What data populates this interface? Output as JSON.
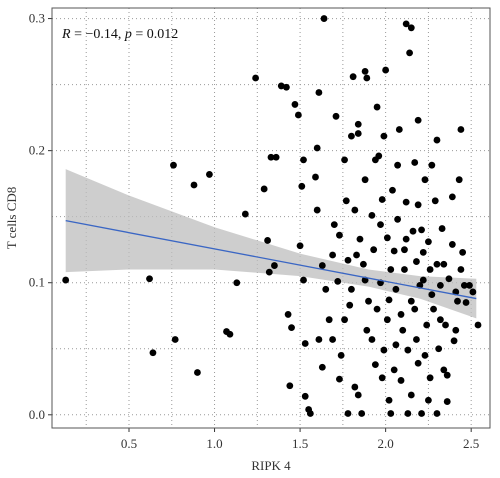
{
  "chart_data": {
    "type": "scatter",
    "annotation": [
      "R",
      " = −0.14, ",
      "p",
      " = 0.012"
    ],
    "x_label": "RIPK 4",
    "y_label": "T cells CD8",
    "xlim": [
      0.05,
      2.61
    ],
    "ylim": [
      -0.01,
      0.308
    ],
    "xticks": [
      0.5,
      {
        "value": 1,
        "label": "1.0"
      },
      1.5,
      {
        "value": 2,
        "label": "2.0"
      },
      2.5
    ],
    "yticks": [
      {
        "value": 0,
        "label": "0.0"
      },
      0.1,
      0.2,
      0.3
    ],
    "grid": true,
    "minor_grid": true,
    "color": "#000000",
    "x": [
      0.13,
      0.62,
      0.64,
      0.77,
      0.76,
      0.88,
      0.97,
      0.9,
      1.07,
      1.09,
      1.13,
      1.18,
      1.24,
      1.29,
      1.31,
      1.32,
      1.33,
      1.36,
      1.35,
      1.39,
      1.42,
      1.43,
      1.45,
      1.44,
      1.47,
      1.49,
      1.52,
      1.51,
      1.5,
      1.52,
      1.53,
      1.53,
      1.55,
      1.56,
      1.61,
      1.64,
      1.63,
      1.63,
      1.6,
      1.59,
      1.6,
      1.67,
      1.69,
      1.71,
      1.73,
      1.72,
      1.74,
      1.76,
      1.77,
      1.78,
      1.79,
      1.8,
      1.81,
      1.83,
      1.82,
      1.84,
      1.84,
      1.86,
      1.87,
      1.88,
      1.88,
      1.89,
      1.9,
      1.92,
      1.92,
      1.94,
      1.95,
      1.96,
      1.97,
      1.98,
      1.98,
      1.99,
      2.0,
      2.01,
      2.02,
      2.02,
      2.03,
      2.04,
      2.05,
      2.06,
      2.07,
      2.08,
      2.09,
      2.09,
      2.11,
      2.11,
      2.12,
      2.12,
      2.13,
      2.14,
      2.15,
      2.15,
      2.16,
      2.17,
      2.18,
      2.18,
      2.19,
      2.19,
      2.2,
      2.21,
      2.22,
      2.23,
      2.24,
      2.25,
      2.26,
      2.26,
      2.27,
      2.28,
      2.29,
      2.3,
      2.31,
      2.32,
      2.33,
      2.34,
      2.35,
      2.36,
      2.37,
      2.39,
      2.4,
      2.41,
      2.42,
      2.43,
      2.44,
      2.45,
      2.46,
      2.47,
      2.49,
      2.51,
      2.54,
      1.61,
      1.65,
      1.7,
      1.76,
      1.8,
      1.85,
      1.89,
      1.93,
      1.95,
      1.99,
      2.03,
      2.06,
      2.1,
      2.13,
      2.17,
      2.21,
      2.23,
      2.27,
      2.3,
      2.32,
      2.36,
      2.39,
      2.41,
      2.44,
      1.73,
      1.84,
      1.94,
      2.05,
      2.15,
      2.25,
      2.34,
      1.69,
      1.82,
      1.97,
      2.07,
      2.19,
      2.3,
      1.78,
      1.88,
      2.01,
      2.12,
      2.22
    ],
    "y": [
      0.102,
      0.103,
      0.047,
      0.057,
      0.189,
      0.174,
      0.182,
      0.032,
      0.063,
      0.061,
      0.1,
      0.152,
      0.255,
      0.171,
      0.132,
      0.108,
      0.195,
      0.195,
      0.113,
      0.249,
      0.248,
      0.076,
      0.066,
      0.022,
      0.235,
      0.227,
      0.193,
      0.173,
      0.128,
      0.102,
      0.054,
      0.014,
      0.004,
      0.001,
      0.244,
      0.3,
      0.113,
      0.036,
      0.202,
      0.18,
      0.155,
      0.072,
      0.057,
      0.226,
      0.136,
      0.101,
      0.045,
      0.193,
      0.162,
      0.001,
      0.083,
      0.211,
      0.256,
      0.121,
      0.021,
      0.213,
      0.22,
      0.001,
      0.114,
      0.178,
      0.26,
      0.255,
      0.086,
      0.151,
      0.057,
      0.193,
      0.233,
      0.196,
      0.1,
      0.163,
      0.028,
      0.211,
      0.261,
      0.134,
      0.087,
      0.011,
      0.001,
      0.17,
      0.124,
      0.053,
      0.148,
      0.216,
      0.076,
      0.026,
      0.11,
      0.125,
      0.161,
      0.296,
      0.001,
      0.274,
      0.293,
      0.086,
      0.139,
      0.191,
      0.057,
      0.116,
      0.223,
      0.039,
      0.098,
      0.001,
      0.123,
      0.178,
      0.068,
      0.131,
      0.11,
      0.028,
      0.189,
      0.08,
      0.162,
      0.001,
      0.05,
      0.098,
      0.141,
      0.114,
      0.068,
      0.01,
      0.103,
      0.165,
      0.056,
      0.093,
      0.086,
      0.178,
      0.216,
      0.123,
      0.098,
      0.085,
      0.098,
      0.093,
      0.068,
      0.057,
      0.095,
      0.144,
      0.072,
      0.095,
      0.133,
      0.064,
      0.125,
      0.08,
      0.049,
      0.11,
      0.095,
      0.064,
      0.049,
      0.08,
      0.14,
      0.045,
      0.091,
      0.114,
      0.072,
      0.03,
      0.129,
      0.064,
      0.11,
      0.027,
      0.015,
      0.038,
      0.034,
      0.015,
      0.011,
      0.034,
      0.121,
      0.155,
      0.144,
      0.189,
      0.159,
      0.208,
      0.117,
      0.102,
      0.072,
      0.133,
      0.102
    ],
    "fit": {
      "x": [
        0.13,
        2.53
      ],
      "y": [
        0.147,
        0.088
      ],
      "color": "#3a66c4"
    },
    "band": {
      "x": [
        0.13,
        0.5,
        1.0,
        1.5,
        1.9,
        2.2,
        2.53
      ],
      "upper": [
        0.186,
        0.166,
        0.142,
        0.122,
        0.11,
        0.105,
        0.103
      ],
      "lower": [
        0.108,
        0.11,
        0.11,
        0.105,
        0.097,
        0.088,
        0.073
      ],
      "color": "#bdbdbd"
    }
  }
}
